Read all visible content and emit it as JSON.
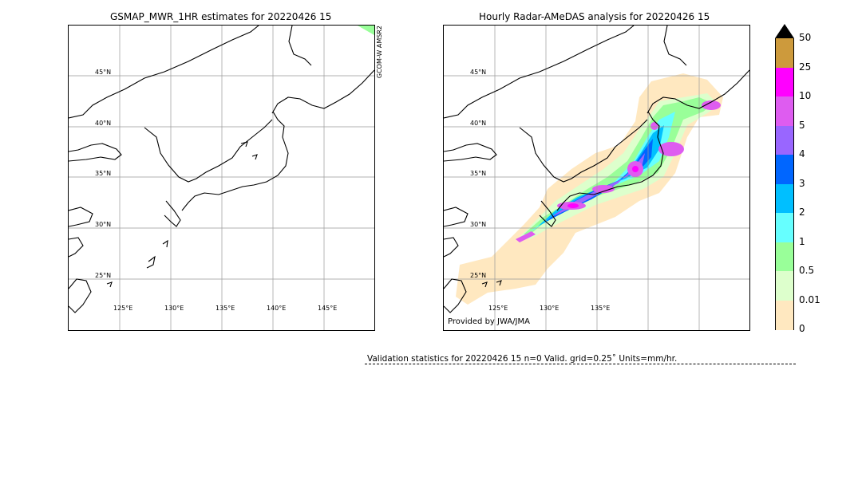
{
  "left_panel": {
    "title": "GSMAP_MWR_1HR estimates for 20220426 15",
    "sat_labels": [
      "GCOM-W",
      "AMSR2"
    ],
    "lat_labels": [
      "45°N",
      "40°N",
      "35°N",
      "30°N",
      "25°N"
    ],
    "lon_labels": [
      "125°E",
      "130°E",
      "135°E",
      "140°E",
      "145°E"
    ]
  },
  "right_panel": {
    "title": "Hourly Radar-AMeDAS analysis for 20220426 15",
    "lat_labels": [
      "45°N",
      "40°N",
      "35°N",
      "30°N",
      "25°N"
    ],
    "lon_labels": [
      "125°E",
      "130°E",
      "135°E"
    ],
    "credit": "Provided by JWA/JMA"
  },
  "colorbar": {
    "ticks": [
      "50",
      "25",
      "10",
      "5",
      "4",
      "3",
      "2",
      "1",
      "0.5",
      "0.01",
      "0"
    ],
    "colors": [
      "#cd9a3c",
      "#ff00ff",
      "#de5cf0",
      "#9966ff",
      "#0066ff",
      "#00bfff",
      "#66ffff",
      "#99ff99",
      "#ddffcc",
      "#ffe8c0"
    ],
    "over_color": "#000000"
  },
  "validation": {
    "text": "Validation statistics for 20220426 15  n=0 Valid. grid=0.25˚ Units=mm/hr."
  }
}
